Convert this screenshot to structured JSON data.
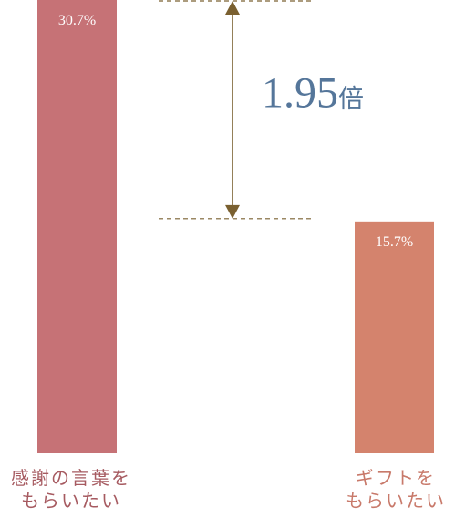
{
  "chart_data": {
    "type": "bar",
    "categories": [
      "感謝の言葉を\nもらいたい",
      "ギフトを\nもらいたい"
    ],
    "values": [
      30.7,
      15.7
    ],
    "value_labels": [
      "30.7%",
      "15.7%"
    ],
    "unit": "%",
    "colors": [
      "#c67276",
      "#d4836d"
    ],
    "label_colors": [
      "#a65a60",
      "#c8796a"
    ],
    "annotation": {
      "text": "1.95",
      "suffix": "倍",
      "color": "#55769a",
      "arrow_color": "#7a6030"
    }
  }
}
